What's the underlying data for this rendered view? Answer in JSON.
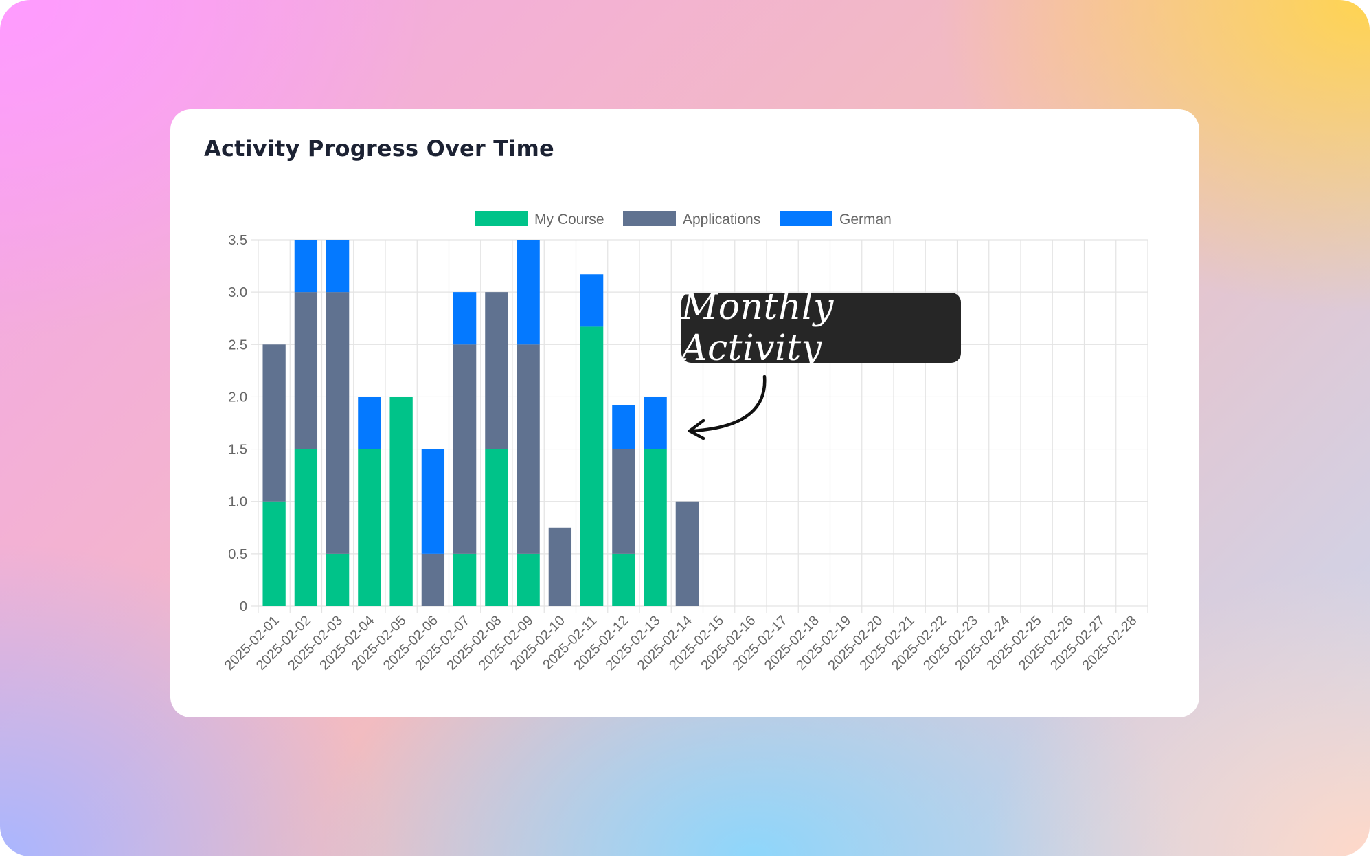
{
  "card": {
    "title": "Activity Progress Over Time"
  },
  "annotation": {
    "text": "Monthly Activity"
  },
  "colors": {
    "my_course": "#00c389",
    "applications": "#607290",
    "german": "#0479ff",
    "grid": "#e3e3e3",
    "annotation_bg": "#262626"
  },
  "chart_data": {
    "type": "bar",
    "stacked": true,
    "title": "",
    "xlabel": "",
    "ylabel": "",
    "ylim": [
      0,
      3.5
    ],
    "yticks": [
      "0",
      "0.5",
      "1.0",
      "1.5",
      "2.0",
      "2.5",
      "3.0",
      "3.5"
    ],
    "grid": true,
    "legend_position": "top",
    "categories": [
      "2025-02-01",
      "2025-02-02",
      "2025-02-03",
      "2025-02-04",
      "2025-02-05",
      "2025-02-06",
      "2025-02-07",
      "2025-02-08",
      "2025-02-09",
      "2025-02-10",
      "2025-02-11",
      "2025-02-12",
      "2025-02-13",
      "2025-02-14",
      "2025-02-15",
      "2025-02-16",
      "2025-02-17",
      "2025-02-18",
      "2025-02-19",
      "2025-02-20",
      "2025-02-21",
      "2025-02-22",
      "2025-02-23",
      "2025-02-24",
      "2025-02-25",
      "2025-02-26",
      "2025-02-27",
      "2025-02-28"
    ],
    "series": [
      {
        "name": "My Course",
        "color": "#00c389",
        "values": [
          1,
          1.5,
          0.5,
          1.5,
          2,
          0,
          0.5,
          1.5,
          0.5,
          0,
          2.67,
          0.5,
          1.5,
          0,
          0,
          0,
          0,
          0,
          0,
          0,
          0,
          0,
          0,
          0,
          0,
          0,
          0,
          0
        ]
      },
      {
        "name": "Applications",
        "color": "#607290",
        "values": [
          1.5,
          1.5,
          2.5,
          0,
          0,
          0.5,
          2,
          1.5,
          2,
          0.75,
          0,
          1,
          0,
          1,
          0,
          0,
          0,
          0,
          0,
          0,
          0,
          0,
          0,
          0,
          0,
          0,
          0,
          0
        ]
      },
      {
        "name": "German",
        "color": "#0479ff",
        "values": [
          0,
          0.5,
          0.5,
          0.5,
          0,
          1,
          0.5,
          0,
          1,
          0,
          0.5,
          0.42,
          0.5,
          0,
          0,
          0,
          0,
          0,
          0,
          0,
          0,
          0,
          0,
          0,
          0,
          0,
          0,
          0
        ]
      }
    ]
  }
}
